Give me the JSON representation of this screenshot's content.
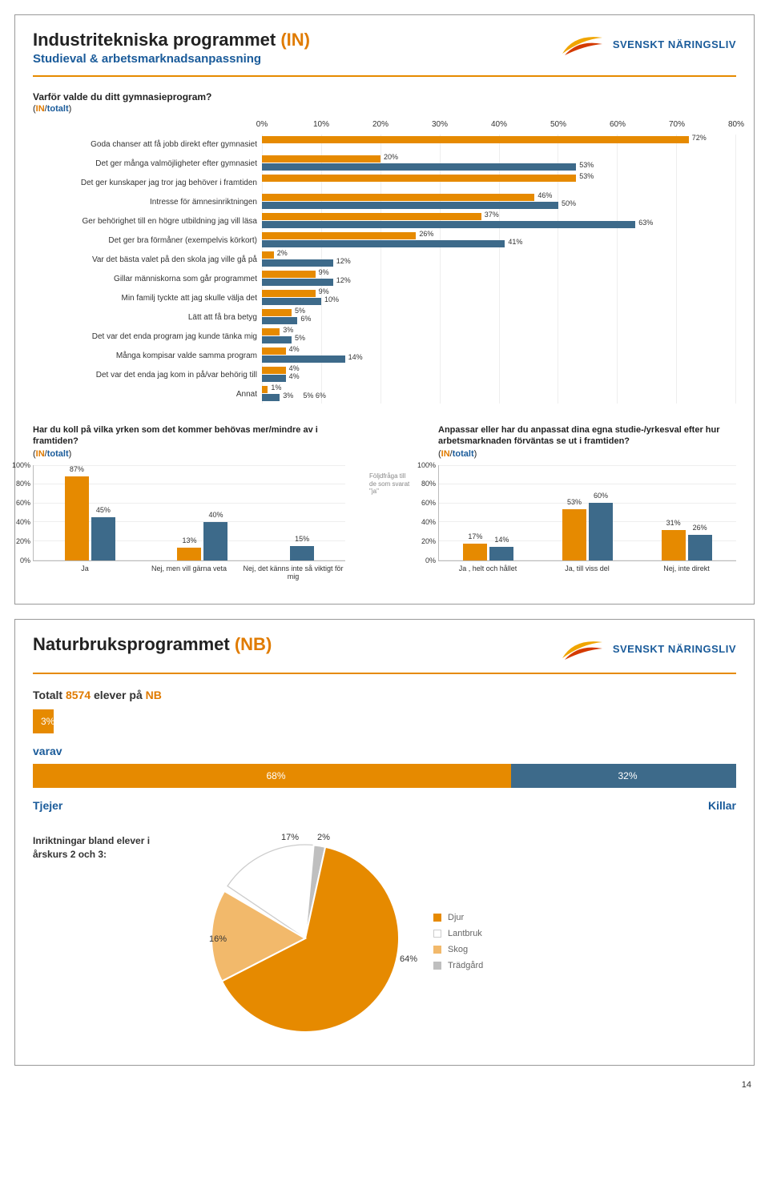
{
  "panel1": {
    "title_main": "Industritekniska programmet ",
    "title_code": "(IN)",
    "subtitle": "Studieval & arbetsmarknadsanpassning",
    "logo_text": "SVENSKT NÄRINGSLIV",
    "q1": {
      "title": "Varför valde du ditt gymnasieprogram?",
      "tag_in": "IN",
      "tag_sep": "/",
      "tag_tot": "totalt",
      "x_ticks": [
        "0%",
        "10%",
        "20%",
        "30%",
        "40%",
        "50%",
        "60%",
        "70%",
        "80%"
      ],
      "x_max": 80,
      "labels": [
        "Goda chanser att få jobb direkt efter gymnasiet",
        "Det ger många valmöjligheter efter gymnasiet",
        "Det ger kunskaper jag tror jag behöver i framtiden",
        "Intresse för ämnesinriktningen",
        "Ger behörighet till en högre utbildning jag vill läsa",
        "Det ger bra förmåner (exempelvis körkort)",
        "Var det bästa valet på den skola jag ville gå på",
        "Gillar människorna som går programmet",
        "Min familj tyckte att jag skulle välja det",
        "Lätt att få bra betyg",
        "Det var det enda program jag kunde tänka mig",
        "Många kompisar valde samma program",
        "Det var det enda jag kom in på/var behörig till",
        "Annat"
      ],
      "in_vals": [
        72,
        20,
        53,
        46,
        37,
        26,
        2,
        9,
        9,
        5,
        3,
        4,
        4,
        1
      ],
      "tot_vals": [
        null,
        53,
        null,
        50,
        63,
        41,
        12,
        12,
        10,
        6,
        5,
        14,
        4,
        3
      ],
      "in_vals_lbl": [
        "72%",
        "20%",
        "53%",
        "46%",
        "37%",
        "26%",
        "2%",
        "9%",
        "9%",
        "5%",
        "3%",
        "4%",
        "4%",
        "1%"
      ],
      "tot_vals_lbl": [
        "",
        "53%",
        "",
        "50%",
        "63%",
        "41%",
        "12%",
        "12%",
        "10%",
        "6%",
        "5%",
        "14%",
        "4%",
        "3%"
      ],
      "extra_lbl": [
        "",
        "",
        "",
        "",
        "",
        "",
        "",
        "",
        "",
        "",
        "",
        "",
        "",
        "5% 6%"
      ],
      "colors": {
        "in": "#e68a00",
        "tot": "#3d6a8a"
      }
    },
    "q2": {
      "title": "Har du koll på vilka yrken som det kommer behövas mer/mindre av i framtiden?",
      "y_ticks": [
        "100%",
        "80%",
        "60%",
        "40%",
        "20%",
        "0%"
      ],
      "y_max": 100,
      "cats": [
        "Ja",
        "Nej, men vill gärna veta",
        "Nej, det känns inte så viktigt för mig"
      ],
      "in_vals": [
        87,
        13,
        null
      ],
      "tot_vals": [
        45,
        40,
        15
      ],
      "in_lbl": [
        "87%",
        "13%",
        ""
      ],
      "tot_lbl": [
        "45%",
        "40%",
        "15%"
      ]
    },
    "follow_text": "Följdfråga till de som svarat \"ja\"",
    "q3": {
      "title": "Anpassar eller har du anpassat dina egna studie-/yrkesval efter hur arbetsmarknaden förväntas se ut i framtiden?",
      "y_ticks": [
        "100%",
        "80%",
        "60%",
        "40%",
        "20%",
        "0%"
      ],
      "y_max": 100,
      "cats": [
        "Ja , helt och hållet",
        "Ja, till viss del",
        "Nej, inte direkt"
      ],
      "in_vals": [
        17,
        53,
        31
      ],
      "tot_vals": [
        14,
        60,
        26
      ],
      "in_lbl": [
        "17%",
        "53%",
        "31%"
      ],
      "tot_lbl": [
        "14%",
        "60%",
        "26%"
      ]
    }
  },
  "panel2": {
    "title_main": "Naturbruksprogrammet ",
    "title_code": "(NB)",
    "logo_text": "SVENSKT NÄRINGSLIV",
    "total_line_pre": "Totalt ",
    "total_num": "8574",
    "total_line_mid": " elever på ",
    "total_code": "NB",
    "totbar_pct": 3,
    "totbar_lbl": "3%",
    "varav": "varav",
    "split": {
      "tjejer_pct": 68,
      "killar_pct": 32,
      "tjejer_lbl": "68%",
      "killar_lbl": "32%",
      "tjejer_name": "Tjejer",
      "killar_name": "Killar"
    },
    "pie": {
      "title": "Inriktningar bland elever i årskurs 2 och 3:",
      "slices": [
        {
          "name": "Djur",
          "value": 64,
          "color": "#e68a00"
        },
        {
          "name": "Lantbruk",
          "value": 17,
          "color": "#fff",
          "border": "#ccc"
        },
        {
          "name": "Skog",
          "value": 16,
          "color": "#f2b96b"
        },
        {
          "name": "Trädgård",
          "value": 2,
          "color": "#bfbfbf"
        }
      ],
      "labels": {
        "d": "64%",
        "l": "17%",
        "s": "16%",
        "t": "2%"
      },
      "legend_prefix": "■"
    }
  },
  "page_num": "14"
}
